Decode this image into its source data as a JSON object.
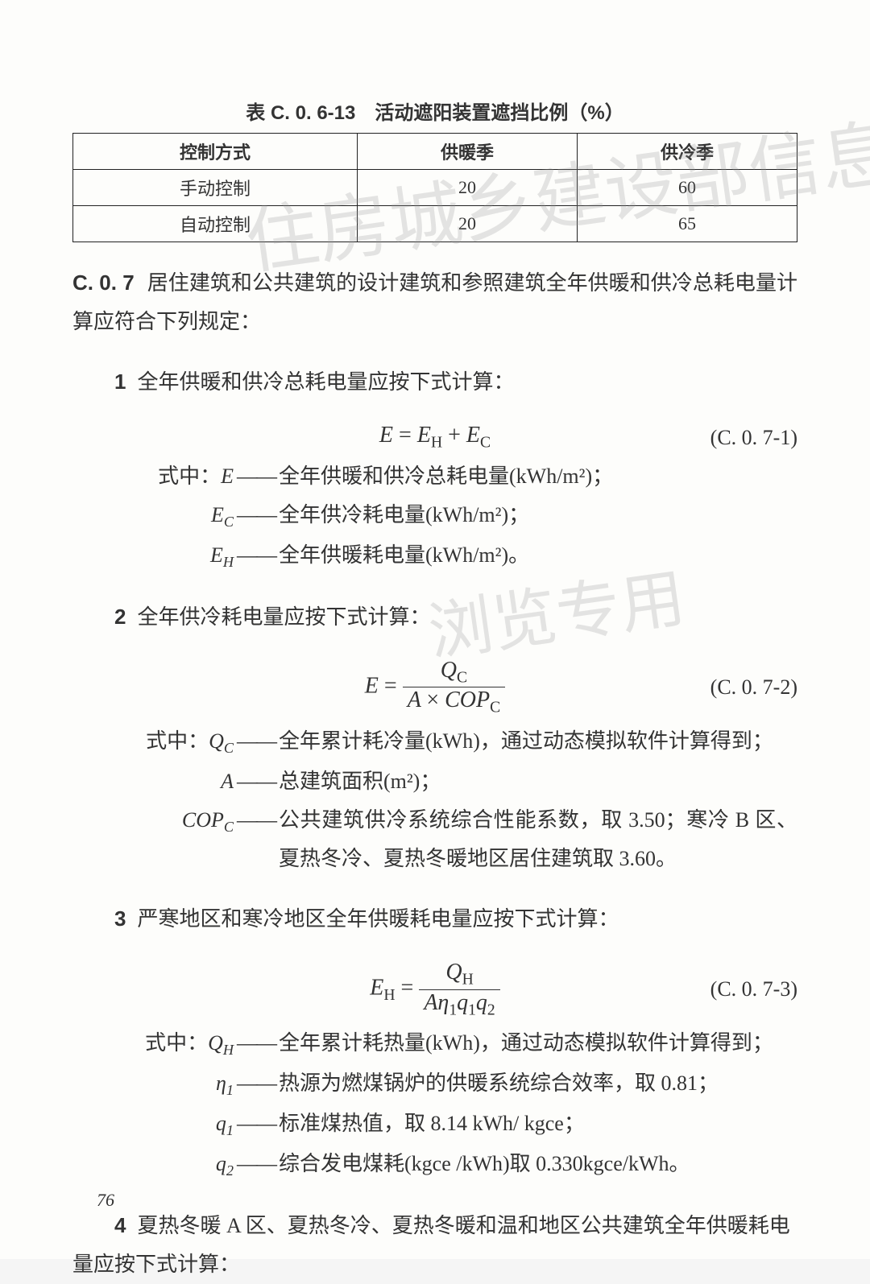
{
  "table": {
    "caption": "表 C. 0. 6-13　活动遮阳装置遮挡比例（%）",
    "headers": [
      "控制方式",
      "供暖季",
      "供冷季"
    ],
    "rows": [
      [
        "手动控制",
        "20",
        "60"
      ],
      [
        "自动控制",
        "20",
        "65"
      ]
    ]
  },
  "section": {
    "num": "C. 0. 7",
    "text": "居住建筑和公共建筑的设计建筑和参照建筑全年供暖和供冷总耗电量计算应符合下列规定："
  },
  "items": {
    "i1": {
      "num": "1",
      "text": "全年供暖和供冷总耗电量应按下式计算："
    },
    "i2": {
      "num": "2",
      "text": "全年供冷耗电量应按下式计算："
    },
    "i3": {
      "num": "3",
      "text": "严寒地区和寒冷地区全年供暖耗电量应按下式计算："
    },
    "i4": {
      "num": "4",
      "text": "夏热冬暖 A 区、夏热冬冷、夏热冬暖和温和地区公共建筑全年供暖耗电量应按下式计算："
    }
  },
  "equations": {
    "e1": {
      "num": "(C. 0. 7-1)"
    },
    "e2": {
      "num": "(C. 0. 7-2)"
    },
    "e3": {
      "num": "(C. 0. 7-3)"
    }
  },
  "defs1": {
    "prefix": "式中：",
    "E": {
      "sym": "E",
      "dash": "——",
      "desc": "全年供暖和供冷总耗电量(kWh/m²)；"
    },
    "Ec": {
      "sym_html": "E<sub>C</sub>",
      "dash": "——",
      "desc": "全年供冷耗电量(kWh/m²)；"
    },
    "Eh": {
      "sym_html": "E<sub>H</sub>",
      "dash": "——",
      "desc": "全年供暖耗电量(kWh/m²)。"
    }
  },
  "defs2": {
    "prefix": "式中：",
    "Qc": {
      "sym_html": "Q<sub>C</sub>",
      "dash": "——",
      "desc": "全年累计耗冷量(kWh)，通过动态模拟软件计算得到；"
    },
    "A": {
      "sym": "A",
      "dash": "——",
      "desc": "总建筑面积(m²)；"
    },
    "COPc": {
      "sym_html": "COP<sub>C</sub>",
      "dash": "——",
      "desc": "公共建筑供冷系统综合性能系数，取 3.50；寒冷 B 区、夏热冬冷、夏热冬暖地区居住建筑取 3.60。"
    }
  },
  "defs3": {
    "prefix": "式中：",
    "Qh": {
      "sym_html": "Q<sub>H</sub>",
      "dash": "——",
      "desc": "全年累计耗热量(kWh)，通过动态模拟软件计算得到；"
    },
    "eta1": {
      "sym_html": "η<sub>1</sub>",
      "dash": "——",
      "desc": "热源为燃煤锅炉的供暖系统综合效率，取 0.81；"
    },
    "q1": {
      "sym_html": "q<sub>1</sub>",
      "dash": "——",
      "desc": "标准煤热值，取 8.14 kWh/ kgce；"
    },
    "q2": {
      "sym_html": "q<sub>2</sub>",
      "dash": "——",
      "desc": "综合发电煤耗(kgce /kWh)取 0.330kgce/kWh。"
    }
  },
  "watermarks": {
    "w1": "住房城乡建设部信息公开",
    "w2": "浏览专用"
  },
  "pageNumber": "76"
}
